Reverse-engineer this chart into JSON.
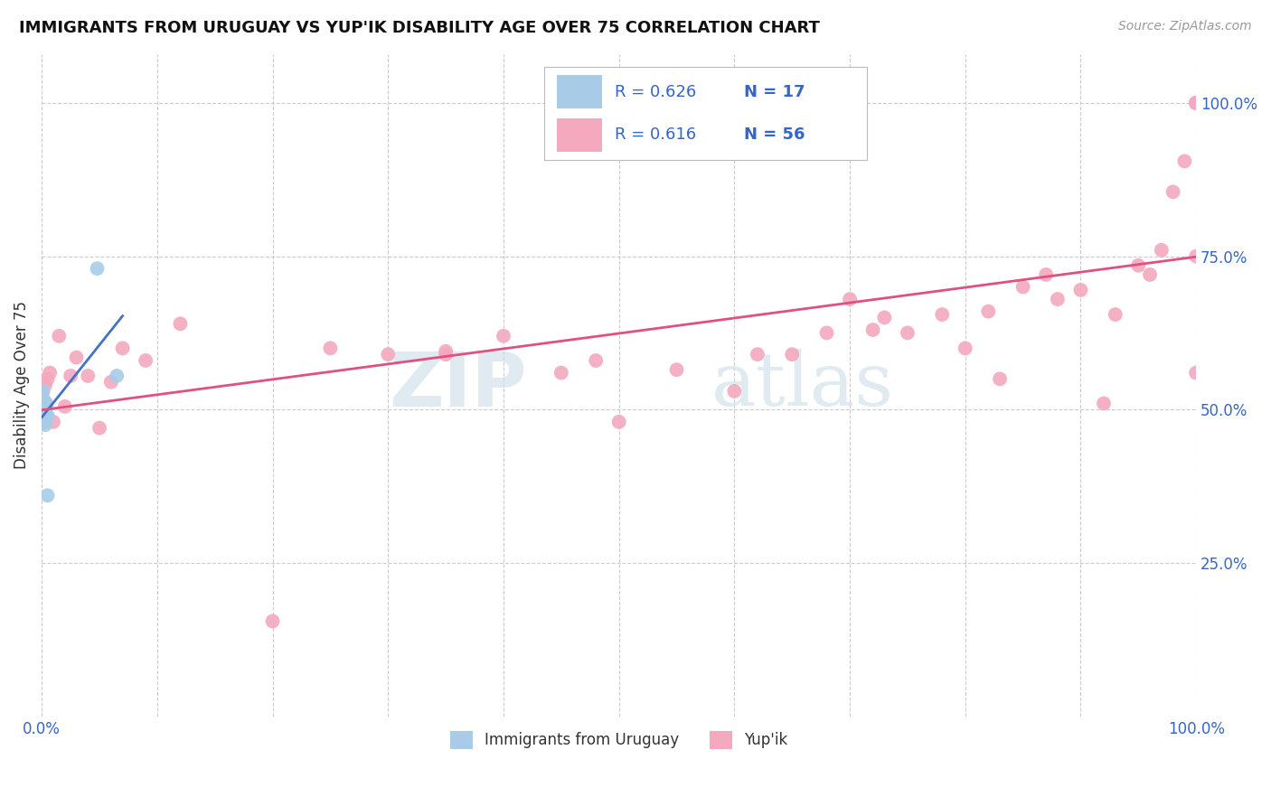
{
  "title": "IMMIGRANTS FROM URUGUAY VS YUP'IK DISABILITY AGE OVER 75 CORRELATION CHART",
  "source": "Source: ZipAtlas.com",
  "ylabel": "Disability Age Over 75",
  "watermark_zip": "ZIP",
  "watermark_atlas": "atlas",
  "color_uruguay": "#a8cce8",
  "color_yupik": "#f4a9be",
  "color_trend_uruguay": "#4472c4",
  "color_trend_yupik": "#e05080",
  "right_yticklabels": [
    "25.0%",
    "50.0%",
    "75.0%",
    "100.0%"
  ],
  "uruguay_x": [
    0.0005,
    0.001,
    0.001,
    0.0015,
    0.002,
    0.002,
    0.002,
    0.0025,
    0.003,
    0.003,
    0.003,
    0.004,
    0.004,
    0.005,
    0.005,
    0.048,
    0.065
  ],
  "uruguay_y": [
    0.51,
    0.53,
    0.5,
    0.505,
    0.515,
    0.5,
    0.49,
    0.48,
    0.51,
    0.5,
    0.475,
    0.505,
    0.49,
    0.49,
    0.36,
    0.73,
    0.555
  ],
  "yupik_x": [
    0.001,
    0.002,
    0.003,
    0.004,
    0.005,
    0.007,
    0.01,
    0.015,
    0.02,
    0.025,
    0.03,
    0.04,
    0.05,
    0.06,
    0.07,
    0.09,
    0.12,
    0.2,
    0.3,
    0.35,
    0.4,
    0.45,
    0.5,
    0.55,
    0.6,
    0.65,
    0.7,
    0.73,
    0.75,
    0.8,
    0.82,
    0.85,
    0.88,
    0.9,
    0.92,
    0.93,
    0.95,
    0.96,
    0.97,
    0.98,
    0.99,
    1.0,
    1.0,
    1.0,
    1.0,
    1.0,
    1.0,
    0.25,
    0.48,
    0.62,
    0.78,
    0.83,
    0.87,
    0.35,
    0.68,
    0.72
  ],
  "yupik_y": [
    0.53,
    0.48,
    0.54,
    0.51,
    0.55,
    0.56,
    0.48,
    0.62,
    0.505,
    0.555,
    0.585,
    0.555,
    0.47,
    0.545,
    0.6,
    0.58,
    0.64,
    0.155,
    0.59,
    0.595,
    0.62,
    0.56,
    0.48,
    0.565,
    0.53,
    0.59,
    0.68,
    0.65,
    0.625,
    0.6,
    0.66,
    0.7,
    0.68,
    0.695,
    0.51,
    0.655,
    0.735,
    0.72,
    0.76,
    0.855,
    0.905,
    1.0,
    1.0,
    1.0,
    1.0,
    0.75,
    0.56,
    0.6,
    0.58,
    0.59,
    0.655,
    0.55,
    0.72,
    0.59,
    0.625,
    0.63
  ],
  "xlim": [
    0.0,
    1.0
  ],
  "ylim_min": 0.0,
  "ylim_max": 1.08
}
